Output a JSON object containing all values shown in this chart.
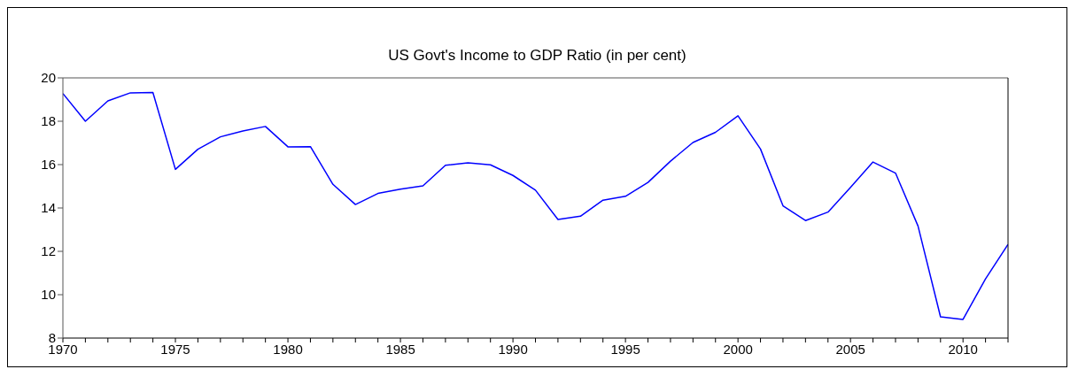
{
  "chart_data": {
    "type": "line",
    "title": "US Govt's Income to GDP Ratio (in per cent)",
    "x": [
      1970,
      1971,
      1972,
      1973,
      1974,
      1975,
      1976,
      1977,
      1978,
      1979,
      1980,
      1981,
      1982,
      1983,
      1984,
      1985,
      1986,
      1987,
      1988,
      1989,
      1990,
      1991,
      1992,
      1993,
      1994,
      1995,
      1996,
      1997,
      1998,
      1999,
      2000,
      2001,
      2002,
      2003,
      2004,
      2005,
      2006,
      2007,
      2008,
      2009,
      2010,
      2011,
      2012
    ],
    "series": [
      {
        "color": "#0000ff",
        "values": [
          19.28,
          18.0,
          18.94,
          19.31,
          19.33,
          15.78,
          16.71,
          17.28,
          17.55,
          17.76,
          16.82,
          16.83,
          15.09,
          14.16,
          14.67,
          14.87,
          15.02,
          15.97,
          16.08,
          15.99,
          15.5,
          14.82,
          13.47,
          13.62,
          14.36,
          14.54,
          15.18,
          16.16,
          17.02,
          17.49,
          18.25,
          16.72,
          14.1,
          13.42,
          13.81,
          14.95,
          16.12,
          15.61,
          13.17,
          8.98,
          8.86,
          10.73,
          12.32
        ]
      }
    ],
    "xlim": [
      1970,
      2012
    ],
    "xticks": [
      1970,
      {
        "value": 1971,
        "label": null
      },
      {
        "value": 1972,
        "label": null
      },
      {
        "value": 1973,
        "label": null
      },
      {
        "value": 1974,
        "label": null
      },
      1975,
      {
        "value": 1976,
        "label": null
      },
      {
        "value": 1977,
        "label": null
      },
      {
        "value": 1978,
        "label": null
      },
      {
        "value": 1979,
        "label": null
      },
      1980,
      {
        "value": 1981,
        "label": null
      },
      {
        "value": 1982,
        "label": null
      },
      {
        "value": 1983,
        "label": null
      },
      {
        "value": 1984,
        "label": null
      },
      1985,
      {
        "value": 1986,
        "label": null
      },
      {
        "value": 1987,
        "label": null
      },
      {
        "value": 1988,
        "label": null
      },
      {
        "value": 1989,
        "label": null
      },
      1990,
      {
        "value": 1991,
        "label": null
      },
      {
        "value": 1992,
        "label": null
      },
      {
        "value": 1993,
        "label": null
      },
      {
        "value": 1994,
        "label": null
      },
      1995,
      {
        "value": 1996,
        "label": null
      },
      {
        "value": 1997,
        "label": null
      },
      {
        "value": 1998,
        "label": null
      },
      {
        "value": 1999,
        "label": null
      },
      2000,
      {
        "value": 2001,
        "label": null
      },
      {
        "value": 2002,
        "label": null
      },
      {
        "value": 2003,
        "label": null
      },
      {
        "value": 2004,
        "label": null
      },
      2005,
      {
        "value": 2006,
        "label": null
      },
      {
        "value": 2007,
        "label": null
      },
      {
        "value": 2008,
        "label": null
      },
      {
        "value": 2009,
        "label": null
      },
      2010,
      {
        "value": 2011,
        "label": null
      },
      {
        "value": 2012,
        "label": null
      }
    ],
    "ylim": [
      8,
      20
    ],
    "yticks": [
      8,
      10,
      12,
      14,
      16,
      18,
      20
    ],
    "grid": false,
    "legend": false,
    "marker": "none",
    "line_style": "solid"
  }
}
